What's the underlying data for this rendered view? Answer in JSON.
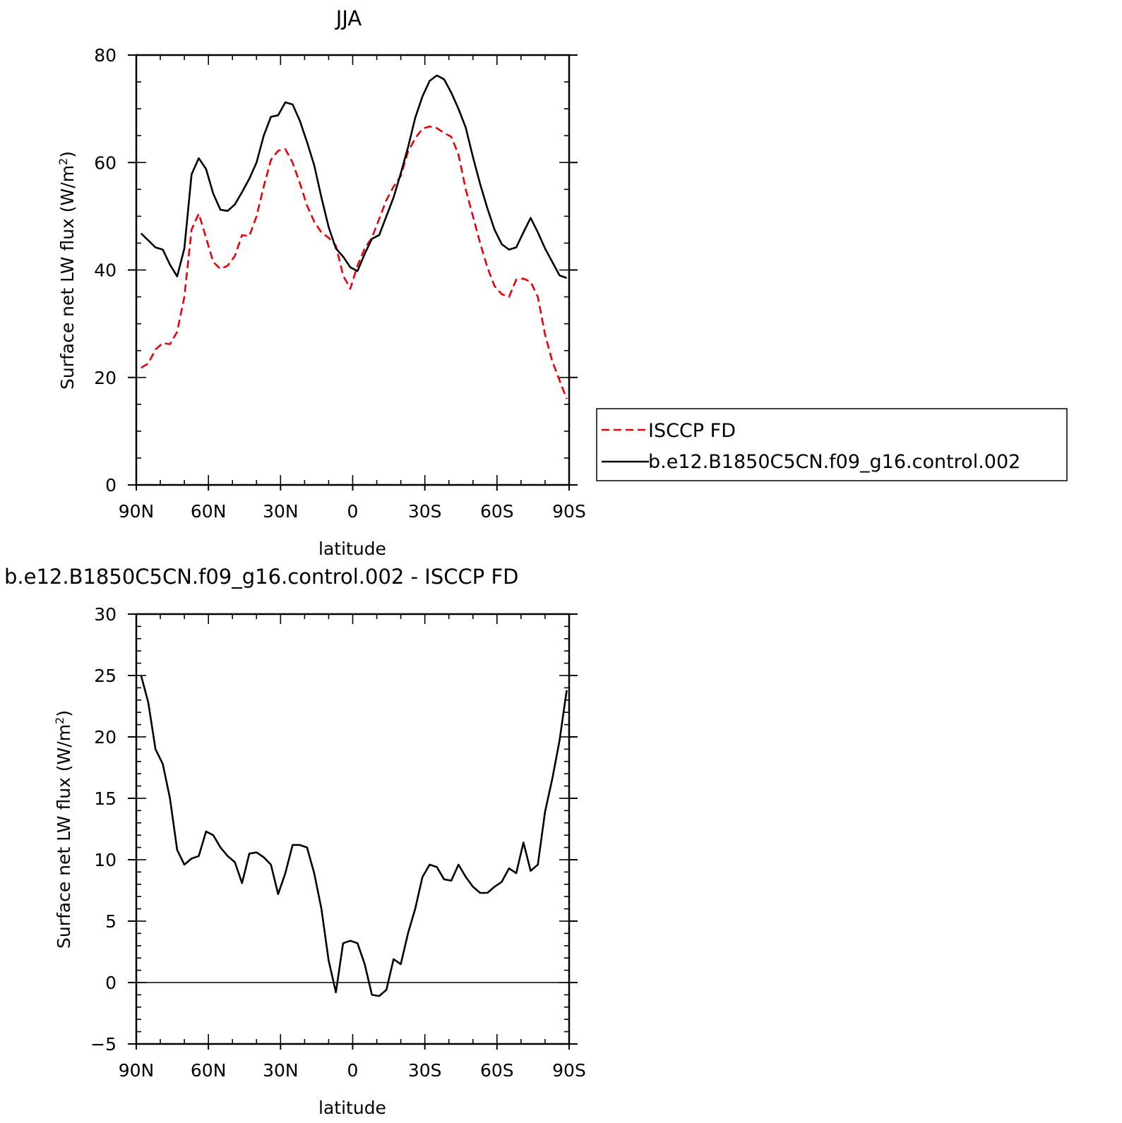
{
  "chart_data": [
    {
      "type": "line",
      "title": "JJA",
      "xlabel": "latitude",
      "ylabel": "Surface net LW flux (W/m²)",
      "ylabel_main": "Surface net LW flux (W/m",
      "ylabel_sup": "2",
      "ylabel_end": ")",
      "xlim": [
        90,
        -90
      ],
      "ylim": [
        0,
        80
      ],
      "x_ticks": [
        90,
        60,
        30,
        0,
        -30,
        -60,
        -90
      ],
      "x_tick_labels": [
        "90N",
        "60N",
        "30N",
        "0",
        "30S",
        "60S",
        "90S"
      ],
      "y_ticks": [
        0,
        20,
        40,
        60,
        80
      ],
      "y_tick_labels": [
        "0",
        "20",
        "40",
        "60",
        "80"
      ],
      "grid": false,
      "legend_position": "right",
      "x": [
        88,
        85,
        82,
        79,
        76,
        73,
        70,
        67,
        64,
        61,
        58,
        55,
        52,
        49,
        46,
        43,
        40,
        37,
        34,
        31,
        28,
        25,
        22,
        19,
        16,
        13,
        10,
        7,
        4,
        1,
        -2,
        -5,
        -8,
        -11,
        -14,
        -17,
        -20,
        -23,
        -26,
        -29,
        -32,
        -35,
        -38,
        -41,
        -44,
        -47,
        -50,
        -53,
        -56,
        -59,
        -62,
        -65,
        -68,
        -71,
        -74,
        -77,
        -80,
        -83,
        -86,
        -89
      ],
      "series": [
        {
          "name": "ISCCP FD",
          "color": "#e8000b",
          "dash": "dashed",
          "values": [
            21.8,
            22.6,
            25.2,
            26.4,
            26.2,
            28.5,
            35.0,
            47.5,
            50.5,
            46.0,
            41.5,
            40.2,
            40.8,
            42.6,
            46.5,
            46.3,
            50.0,
            55.5,
            60.5,
            62.2,
            62.5,
            60.0,
            56.2,
            52.0,
            49.0,
            47.0,
            46.0,
            44.5,
            39.0,
            36.5,
            40.8,
            44.0,
            46.0,
            49.5,
            53.0,
            55.5,
            57.5,
            62.0,
            64.5,
            66.3,
            66.7,
            66.4,
            65.5,
            64.8,
            61.5,
            55.0,
            50.0,
            45.0,
            40.5,
            37.0,
            35.5,
            35.0,
            38.2,
            38.4,
            37.8,
            35.0,
            28.0,
            23.0,
            19.5,
            16.0
          ]
        },
        {
          "name": "b.e12.B1850C5CN.f09_g16.control.002",
          "color": "#000000",
          "dash": "solid",
          "values": [
            46.8,
            45.5,
            44.2,
            43.8,
            41.0,
            38.8,
            44.0,
            57.8,
            60.8,
            58.8,
            54.2,
            51.2,
            51.0,
            52.2,
            54.5,
            57.0,
            60.0,
            65.0,
            68.5,
            68.8,
            71.2,
            70.8,
            67.8,
            63.8,
            59.5,
            53.5,
            48.0,
            44.0,
            42.5,
            40.5,
            39.8,
            43.0,
            45.8,
            46.5,
            50.0,
            53.5,
            58.0,
            62.8,
            68.3,
            72.3,
            75.2,
            76.2,
            75.5,
            73.0,
            70.0,
            66.5,
            61.0,
            56.0,
            51.5,
            47.5,
            44.8,
            43.8,
            44.2,
            47.0,
            49.7,
            47.0,
            44.0,
            41.5,
            39.0,
            38.5
          ]
        }
      ],
      "legend_entries": [
        "ISCCP FD",
        "b.e12.B1850C5CN.f09_g16.control.002"
      ]
    },
    {
      "type": "line",
      "title": "b.e12.B1850C5CN.f09_g16.control.002 - ISCCP FD",
      "xlabel": "latitude",
      "ylabel": "Surface net LW flux (W/m²)",
      "ylabel_main": "Surface net LW flux (W/m",
      "ylabel_sup": "2",
      "ylabel_end": ")",
      "xlim": [
        90,
        -90
      ],
      "ylim": [
        -5,
        30
      ],
      "x_ticks": [
        90,
        60,
        30,
        0,
        -30,
        -60,
        -90
      ],
      "x_tick_labels": [
        "90N",
        "60N",
        "30N",
        "0",
        "30S",
        "60S",
        "90S"
      ],
      "y_ticks": [
        -5,
        0,
        5,
        10,
        15,
        20,
        25,
        30
      ],
      "y_tick_labels": [
        "−5",
        "0",
        "5",
        "10",
        "15",
        "20",
        "25",
        "30"
      ],
      "grid": false,
      "x": [
        88,
        85,
        82,
        79,
        76,
        73,
        70,
        67,
        64,
        61,
        58,
        55,
        52,
        49,
        46,
        43,
        40,
        37,
        34,
        31,
        28,
        25,
        22,
        19,
        16,
        13,
        10,
        7,
        4,
        1,
        -2,
        -5,
        -8,
        -11,
        -14,
        -17,
        -20,
        -23,
        -26,
        -29,
        -32,
        -35,
        -38,
        -41,
        -44,
        -47,
        -50,
        -53,
        -56,
        -59,
        -62,
        -65,
        -68,
        -71,
        -74,
        -77,
        -80,
        -83,
        -86,
        -89
      ],
      "series": [
        {
          "color": "#000000",
          "dash": "solid",
          "values": [
            25.0,
            22.8,
            19.0,
            17.8,
            15.0,
            10.8,
            9.6,
            10.1,
            10.3,
            12.3,
            12.0,
            11.0,
            10.3,
            9.8,
            8.1,
            10.5,
            10.6,
            10.2,
            9.6,
            7.2,
            8.9,
            11.2,
            11.2,
            11.0,
            8.9,
            6.0,
            1.8,
            -0.8,
            3.2,
            3.4,
            3.2,
            1.5,
            -1.0,
            -1.1,
            -0.6,
            1.9,
            1.5,
            4.0,
            6.0,
            8.6,
            9.6,
            9.4,
            8.4,
            8.3,
            9.6,
            8.6,
            7.8,
            7.3,
            7.3,
            7.8,
            8.2,
            9.3,
            8.9,
            11.4,
            9.1,
            9.6,
            13.9,
            16.6,
            19.7,
            23.8
          ]
        }
      ]
    }
  ]
}
